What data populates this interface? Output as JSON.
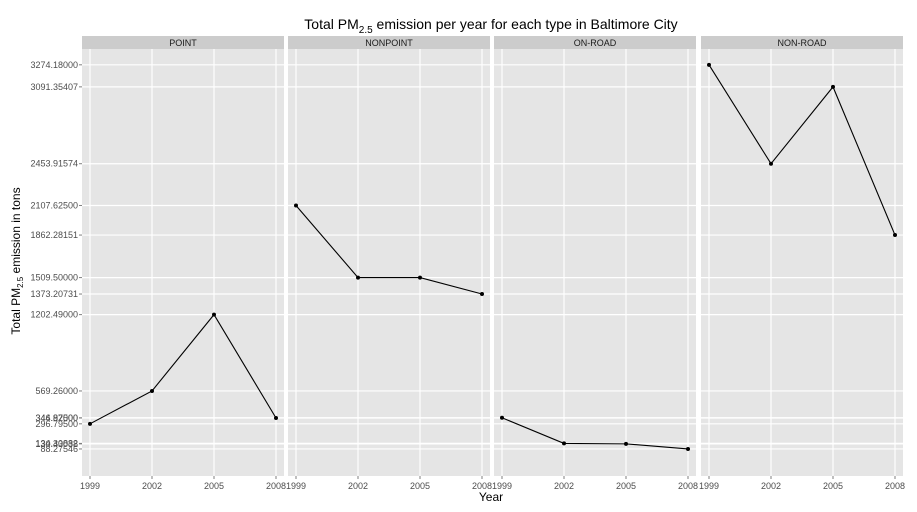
{
  "chart_data": {
    "type": "line",
    "title": {
      "prefix": "Total PM",
      "sub": "2.5",
      "suffix": " emission per year for each type in Baltimore City"
    },
    "xlabel": "Year",
    "ylabel": {
      "prefix": "Total PM",
      "sub": "2.5",
      "suffix": " emission in tons"
    },
    "x": [
      1999,
      2002,
      2005,
      2008
    ],
    "xlim": [
      1999,
      2008
    ],
    "ylim": [
      0,
      3300
    ],
    "grid": true,
    "facets": [
      {
        "name": "POINT",
        "values": [
          296.795,
          569.26,
          1202.49,
          344.975
        ]
      },
      {
        "name": "NONPOINT",
        "values": [
          2107.625,
          1509.5,
          1509.5,
          1373.20731
        ]
      },
      {
        "name": "ON-ROAD",
        "values": [
          346.82,
          134.30882,
          130.43038,
          88.27546
        ]
      },
      {
        "name": "NON-ROAD",
        "values": [
          3274.18,
          2453.91574,
          3091.35407,
          1862.28151
        ]
      }
    ],
    "y_ticks": [
      {
        "value": 88.27546,
        "label": "88.27546"
      },
      {
        "value": 130.43038,
        "label": "130.43038"
      },
      {
        "value": 134.30882,
        "label": "134.30882"
      },
      {
        "value": 296.795,
        "label": "296.79500"
      },
      {
        "value": 344.975,
        "label": "344.97500"
      },
      {
        "value": 346.82,
        "label": "346.82000"
      },
      {
        "value": 569.26,
        "label": "569.26000"
      },
      {
        "value": 1202.49,
        "label": "1202.49000"
      },
      {
        "value": 1373.20731,
        "label": "1373.20731"
      },
      {
        "value": 1509.5,
        "label": "1509.50000"
      },
      {
        "value": 1862.28151,
        "label": "1862.28151"
      },
      {
        "value": 2107.625,
        "label": "2107.62500"
      },
      {
        "value": 2453.91574,
        "label": "2453.91574"
      },
      {
        "value": 3091.35407,
        "label": "3091.35407"
      },
      {
        "value": 3274.18,
        "label": "3274.18000"
      }
    ],
    "x_ticks": [
      "1999",
      "2002",
      "2005",
      "2008"
    ],
    "colors": {
      "panel_bg": "#e5e5e5",
      "strip_bg": "#cccccc",
      "grid": "#ffffff",
      "line": "#000000"
    }
  }
}
